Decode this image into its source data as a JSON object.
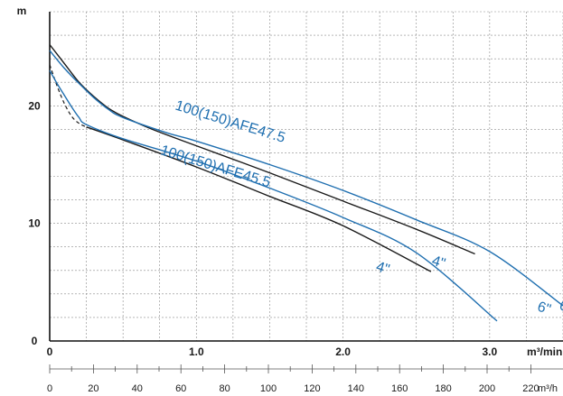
{
  "chart_data": {
    "type": "line",
    "title": "",
    "ylabel": "m",
    "xlabel_primary": "m³/min",
    "xlabel_secondary": "m³/h",
    "grid": true,
    "legend": "none",
    "x_primary": {
      "min": 0,
      "max": 3.5,
      "ticks": [
        0,
        1.0,
        2.0,
        3.0
      ],
      "tick_labels": [
        "0",
        "1.0",
        "2.0",
        "3.0"
      ]
    },
    "y": {
      "min": 0,
      "max": 28,
      "ticks": [
        0,
        10,
        20
      ],
      "tick_labels": [
        "0",
        "10",
        "20"
      ]
    },
    "x_secondary": {
      "min": 0,
      "max": 210,
      "ticks": [
        0,
        20,
        40,
        60,
        80,
        100,
        120,
        140,
        160,
        180,
        200,
        220
      ],
      "tick_labels": [
        "0",
        "20",
        "40",
        "60",
        "80",
        "100",
        "120",
        "140",
        "160",
        "180",
        "200",
        "220"
      ]
    },
    "series": [
      {
        "name": "100(150)AFE47.5 4\"",
        "color": "#1a1a1a",
        "points": [
          [
            0,
            25.2
          ],
          [
            0.1,
            23.6
          ],
          [
            0.2,
            22.0
          ],
          [
            0.3,
            20.8
          ],
          [
            0.4,
            19.8
          ],
          [
            0.5,
            19.1
          ],
          [
            0.7,
            18.0
          ],
          [
            1.0,
            16.6
          ],
          [
            1.5,
            14.3
          ],
          [
            2.0,
            11.9
          ],
          [
            2.5,
            9.5
          ],
          [
            2.9,
            7.4
          ]
        ]
      },
      {
        "name": "100(150)AFE47.5 6\"",
        "color": "#1f6fb0",
        "points": [
          [
            0,
            24.7
          ],
          [
            0.1,
            23.2
          ],
          [
            0.2,
            21.9
          ],
          [
            0.3,
            20.7
          ],
          [
            0.4,
            19.7
          ],
          [
            0.5,
            19.0
          ],
          [
            0.8,
            17.7
          ],
          [
            1.0,
            17.0
          ],
          [
            1.5,
            15.0
          ],
          [
            2.0,
            12.8
          ],
          [
            2.5,
            10.3
          ],
          [
            3.0,
            7.6
          ],
          [
            3.5,
            3.0
          ]
        ]
      },
      {
        "name": "100(150)AFE45.5 4\"",
        "color": "#1a1a1a",
        "points": [
          [
            0,
            23.5
          ],
          [
            0.05,
            21.7
          ],
          [
            0.1,
            20.2
          ],
          [
            0.15,
            19.1
          ],
          [
            0.2,
            18.5
          ],
          [
            0.25,
            18.2
          ],
          [
            0.5,
            17.1
          ],
          [
            1.0,
            14.8
          ],
          [
            1.5,
            12.3
          ],
          [
            2.0,
            9.8
          ],
          [
            2.6,
            5.9
          ]
        ]
      },
      {
        "name": "100(150)AFE45.5 6\"",
        "color": "#1f6fb0",
        "points": [
          [
            0,
            23.0
          ],
          [
            0.05,
            21.9
          ],
          [
            0.1,
            20.9
          ],
          [
            0.15,
            19.9
          ],
          [
            0.2,
            19.0
          ],
          [
            0.25,
            18.4
          ],
          [
            0.5,
            17.2
          ],
          [
            1.0,
            15.3
          ],
          [
            1.5,
            13.0
          ],
          [
            2.0,
            10.5
          ],
          [
            2.5,
            7.5
          ],
          [
            3.05,
            1.7
          ]
        ]
      }
    ],
    "annotations": [
      {
        "text": "100(150)AFE47.5",
        "color": "#1f6fb0",
        "x": 0.85,
        "y": 19.7,
        "rotate": 17
      },
      {
        "text": "100(150)AFE45.5",
        "color": "#1f6fb0",
        "x": 0.75,
        "y": 15.9,
        "rotate": 17
      },
      {
        "text": "4\"",
        "color": "#1f6fb0",
        "x": 2.6,
        "y": 6.5,
        "rotate": 17
      },
      {
        "text": "4\"",
        "color": "#1f6fb0",
        "x": 2.22,
        "y": 6.0,
        "rotate": 17
      },
      {
        "text": "6\"",
        "color": "#1f6fb0",
        "x": 3.32,
        "y": 2.6,
        "rotate": 17
      },
      {
        "text": "6\"",
        "color": "#1f6fb0",
        "x": 3.47,
        "y": 2.7,
        "rotate": 17
      }
    ]
  }
}
